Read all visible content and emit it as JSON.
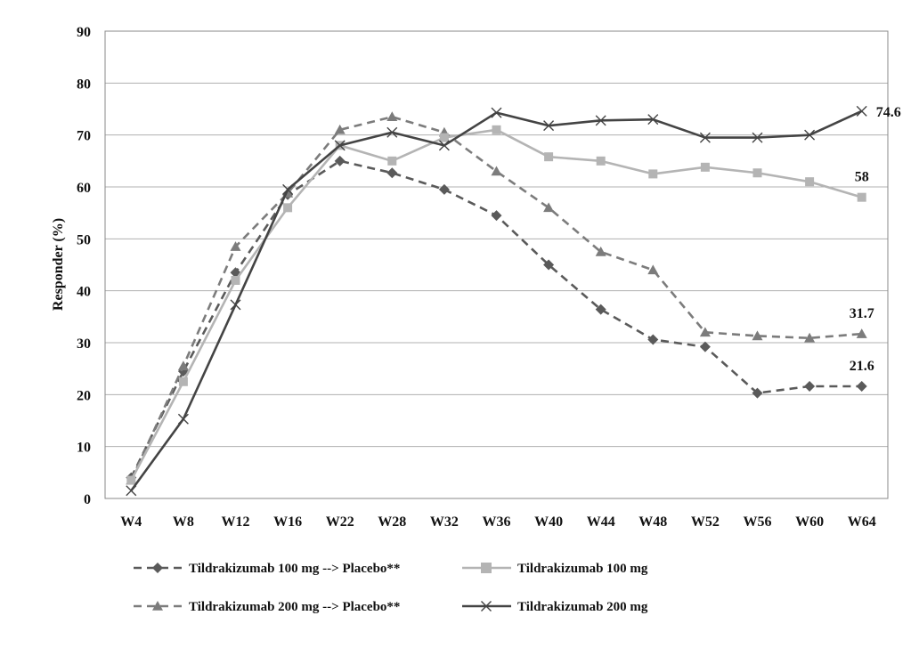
{
  "chart_data": {
    "type": "line",
    "categories": [
      "W4",
      "W8",
      "W12",
      "W16",
      "W22",
      "W28",
      "W32",
      "W36",
      "W40",
      "W44",
      "W48",
      "W52",
      "W56",
      "W60",
      "W64"
    ],
    "ylabel": "Responder (%)",
    "xlabel": "",
    "ylim": [
      0,
      90
    ],
    "yticks": [
      0,
      10,
      20,
      30,
      40,
      50,
      60,
      70,
      80,
      90
    ],
    "grid": true,
    "legend_position": "bottom",
    "series": [
      {
        "name": "Tildrakizumab 100 mg --> Placebo**",
        "color": "#5a5a5a",
        "dash": "dashed",
        "marker": "diamond",
        "values": [
          4.0,
          24.5,
          43.5,
          58.5,
          65.0,
          62.7,
          59.5,
          54.5,
          45.0,
          36.4,
          30.6,
          29.2,
          20.3,
          21.6,
          21.6
        ],
        "end_label": "21.6"
      },
      {
        "name": "Tildrakizumab 200 mg --> Placebo**",
        "color": "#7c7c7c",
        "dash": "dashed",
        "marker": "triangle",
        "values": [
          3.5,
          25.5,
          48.5,
          58.8,
          71.0,
          73.5,
          70.5,
          63.0,
          56.0,
          47.5,
          44.0,
          32.0,
          31.3,
          30.9,
          31.7
        ],
        "end_label": "31.7"
      },
      {
        "name": "Tildrakizumab 100 mg",
        "color": "#b4b4b4",
        "dash": "solid",
        "marker": "square",
        "values": [
          3.5,
          22.5,
          42.0,
          56.0,
          68.0,
          65.0,
          69.5,
          71.0,
          65.8,
          65.0,
          62.5,
          63.8,
          62.7,
          61.0,
          58.0
        ],
        "end_label": "58"
      },
      {
        "name": "Tildrakizumab 200 mg",
        "color": "#444444",
        "dash": "solid",
        "marker": "x",
        "values": [
          1.5,
          15.3,
          37.3,
          59.5,
          68.0,
          70.5,
          68.0,
          74.3,
          71.8,
          72.8,
          73.0,
          69.5,
          69.5,
          70.0,
          74.6
        ],
        "end_label": "74.6"
      }
    ]
  }
}
